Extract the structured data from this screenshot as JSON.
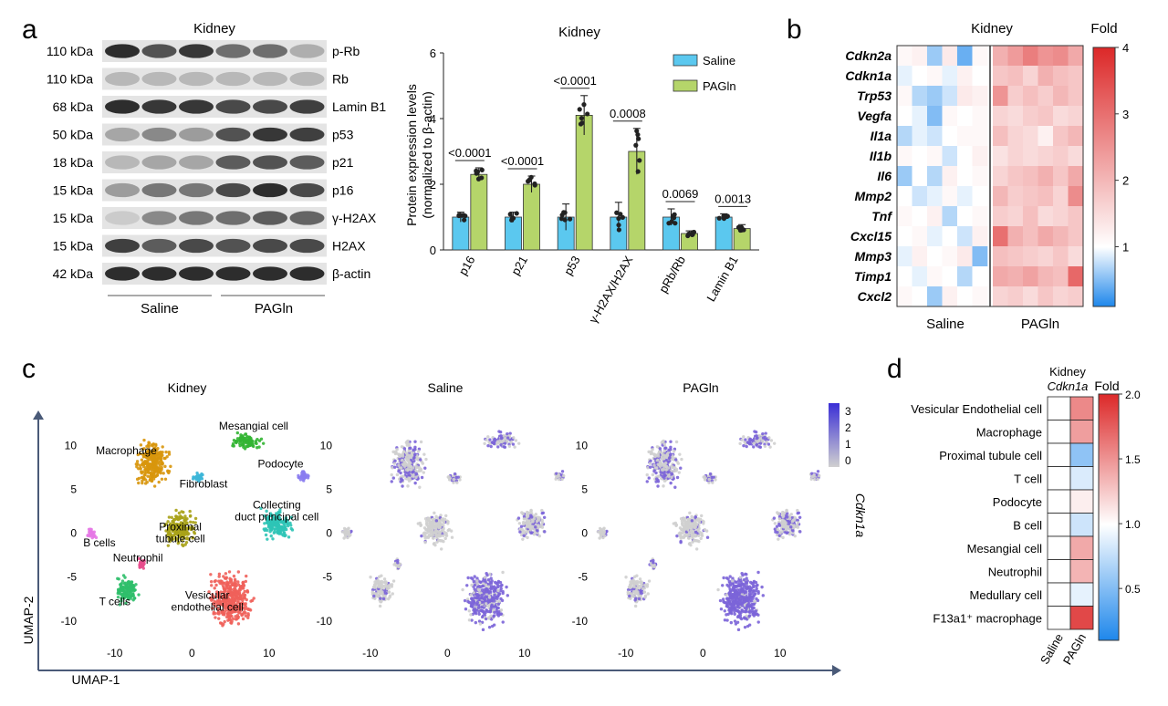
{
  "panels": {
    "a": "a",
    "b": "b",
    "c": "c",
    "d": "d"
  },
  "colors": {
    "saline": "#5bc8ef",
    "pagln": "#b5d56a",
    "macrophage": "#d8960c",
    "mesangial": "#33b533",
    "fibroblast": "#3cb6d8",
    "podocyte": "#8a7cf0",
    "collecting": "#2ec4b6",
    "b_cells": "#e678e6",
    "neutrophil": "#e74c8c",
    "proximal": "#a8a218",
    "t_cells": "#2fbf6a",
    "vesicular": "#f0605a",
    "expr_high": "#3b2fd6",
    "expr_low": "#d0d0d0"
  },
  "western": {
    "title": "Kidney",
    "rows": [
      {
        "mw": "110 kDa",
        "protein": "p-Rb",
        "bands": [
          0.95,
          0.75,
          0.9,
          0.6,
          0.6,
          0.25
        ]
      },
      {
        "mw": "110 kDa",
        "protein": "Rb",
        "bands": [
          0.2,
          0.2,
          0.2,
          0.2,
          0.2,
          0.2
        ]
      },
      {
        "mw": "68 kDa",
        "protein": "Lamin B1",
        "bands": [
          0.95,
          0.9,
          0.9,
          0.8,
          0.8,
          0.85
        ]
      },
      {
        "mw": "50 kDa",
        "protein": "p53",
        "bands": [
          0.3,
          0.45,
          0.35,
          0.75,
          0.9,
          0.85
        ]
      },
      {
        "mw": "18 kDa",
        "protein": "p21",
        "bands": [
          0.2,
          0.3,
          0.3,
          0.7,
          0.75,
          0.7
        ]
      },
      {
        "mw": "15 kDa",
        "protein": "p16",
        "bands": [
          0.35,
          0.55,
          0.55,
          0.8,
          0.95,
          0.8
        ]
      },
      {
        "mw": "15 kDa",
        "protein": "γ-H2AX",
        "bands": [
          0.1,
          0.45,
          0.55,
          0.6,
          0.7,
          0.65
        ]
      },
      {
        "mw": "15 kDa",
        "protein": "H2AX",
        "bands": [
          0.85,
          0.7,
          0.8,
          0.75,
          0.8,
          0.8
        ]
      },
      {
        "mw": "42 kDa",
        "protein": "β-actin",
        "bands": [
          0.95,
          0.95,
          0.95,
          0.95,
          0.95,
          0.95
        ]
      }
    ],
    "group_labels": [
      "Saline",
      "PAGln"
    ]
  },
  "chart_data": [
    {
      "type": "bar",
      "title": "Kidney",
      "ylabel": "Protein expression levels",
      "ylabel2": "(normalized to β-actin)",
      "ylim": [
        0,
        6
      ],
      "yticks": [
        "0",
        "2",
        "4",
        "6"
      ],
      "categories": [
        "p16",
        "p21",
        "p53",
        "γ-H2AX/H2AX",
        "pRb/Rb",
        "Lamin B1"
      ],
      "series": [
        {
          "name": "Saline",
          "values": [
            1.0,
            1.0,
            1.0,
            1.0,
            1.0,
            1.0
          ]
        },
        {
          "name": "PAGln",
          "values": [
            2.3,
            2.0,
            4.1,
            3.0,
            0.5,
            0.65
          ]
        }
      ],
      "errors": {
        "Saline": [
          0.15,
          0.15,
          0.4,
          0.45,
          0.25,
          0.1
        ],
        "PAGln": [
          0.2,
          0.25,
          0.6,
          0.7,
          0.08,
          0.12
        ]
      },
      "pvalues": [
        "<0.0001",
        "<0.0001",
        "<0.0001",
        "0.0008",
        "0.0069",
        "0.0013"
      ]
    },
    {
      "type": "heatmap",
      "title": "Kidney",
      "rows": [
        "Cdkn2a",
        "Cdkn1a",
        "Trp53",
        "Vegfa",
        "Il1a",
        "Il1b",
        "Il6",
        "Mmp2",
        "Tnf",
        "Cxcl15",
        "Mmp3",
        "Timp1",
        "Cxcl2"
      ],
      "groups": [
        "Saline",
        "PAGln"
      ],
      "colorbar_label": "Fold",
      "colorbar_ticks": [
        "4",
        "3",
        "2",
        "1"
      ],
      "range": [
        0.1,
        4
      ],
      "values": [
        [
          1.1,
          1.2,
          0.6,
          1.3,
          0.4,
          1.1,
          2.1,
          2.4,
          2.8,
          2.5,
          2.6,
          2.2
        ],
        [
          0.9,
          1.0,
          1.1,
          0.9,
          1.2,
          1.0,
          1.8,
          1.9,
          1.6,
          2.1,
          1.9,
          1.8
        ],
        [
          1.1,
          0.7,
          0.6,
          0.8,
          1.3,
          1.2,
          2.5,
          1.7,
          1.9,
          1.7,
          2.0,
          1.8
        ],
        [
          1.0,
          0.9,
          0.5,
          1.1,
          1.0,
          1.1,
          1.6,
          1.5,
          1.7,
          1.8,
          1.5,
          1.6
        ],
        [
          0.7,
          0.9,
          0.8,
          1.0,
          1.1,
          1.1,
          1.9,
          1.6,
          1.5,
          1.2,
          1.8,
          2.0
        ],
        [
          1.1,
          1.0,
          1.1,
          0.8,
          1.0,
          1.2,
          1.4,
          1.6,
          1.5,
          1.6,
          1.7,
          1.5
        ],
        [
          0.6,
          1.0,
          0.7,
          1.2,
          1.0,
          1.1,
          1.6,
          1.8,
          1.9,
          2.1,
          1.8,
          2.2
        ],
        [
          1.0,
          0.8,
          0.9,
          1.1,
          0.9,
          1.0,
          2.0,
          1.7,
          1.8,
          1.9,
          1.6,
          2.6
        ],
        [
          1.1,
          1.0,
          1.2,
          0.7,
          1.0,
          1.1,
          1.7,
          1.6,
          1.9,
          1.5,
          1.6,
          1.8
        ],
        [
          1.0,
          1.1,
          0.9,
          1.0,
          0.8,
          1.2,
          3.0,
          2.1,
          1.9,
          2.2,
          2.0,
          1.8
        ],
        [
          0.9,
          1.2,
          1.0,
          1.1,
          1.3,
          0.5,
          1.9,
          1.8,
          1.7,
          1.6,
          1.8,
          1.5
        ],
        [
          1.0,
          0.9,
          1.1,
          1.0,
          0.7,
          1.0,
          2.2,
          2.1,
          2.3,
          2.0,
          1.9,
          3.1
        ],
        [
          1.1,
          1.0,
          0.6,
          1.2,
          1.0,
          1.1,
          1.6,
          1.7,
          1.5,
          1.8,
          1.6,
          1.7
        ]
      ]
    },
    {
      "type": "scatter",
      "title": "Kidney",
      "subtitles": [
        "Saline",
        "PAGln"
      ],
      "xlabel": "UMAP-1",
      "ylabel": "UMAP-2",
      "xticks": [
        "-10",
        "0",
        "10"
      ],
      "yticks": [
        "10",
        "5",
        "0",
        "-5",
        "-10"
      ],
      "xlim": [
        -14,
        17
      ],
      "ylim": [
        -12,
        14
      ],
      "expr_legend": [
        "3",
        "2",
        "1",
        "0"
      ],
      "gene_label": "Cdkn1a",
      "clusters": [
        {
          "name": "Macrophage",
          "x": -5,
          "y": 8,
          "w": 5.5,
          "h": 6.5,
          "color_key": "macrophage",
          "expr": 0.35
        },
        {
          "name": "Mesangial cell",
          "x": 7,
          "y": 10.5,
          "w": 5,
          "h": 2.5,
          "color_key": "mesangial",
          "expr": 0.5
        },
        {
          "name": "Fibroblast",
          "x": 0.8,
          "y": 6.3,
          "w": 2,
          "h": 1.3,
          "color_key": "fibroblast",
          "expr": 0.2
        },
        {
          "name": "Podocyte",
          "x": 14.5,
          "y": 6.5,
          "w": 1.8,
          "h": 1.3,
          "color_key": "podocyte",
          "expr": 0.5
        },
        {
          "name": "Collecting duct principal cell",
          "x": 11,
          "y": 1,
          "w": 5,
          "h": 4,
          "color_key": "collecting",
          "expr": 0.3
        },
        {
          "name": "B cells",
          "x": -13,
          "y": 0,
          "w": 1.6,
          "h": 1.5,
          "color_key": "b_cells",
          "expr": 0.1
        },
        {
          "name": "Neutrophil",
          "x": -6.5,
          "y": -3.5,
          "w": 1.2,
          "h": 1.5,
          "color_key": "neutrophil",
          "expr": 0.3
        },
        {
          "name": "Proximal tubule cell",
          "x": -1.5,
          "y": 0.5,
          "w": 5,
          "h": 5,
          "color_key": "proximal",
          "expr": 0.1
        },
        {
          "name": "T cells",
          "x": -8.5,
          "y": -6.5,
          "w": 4,
          "h": 4,
          "color_key": "t_cells",
          "expr": 0.15
        },
        {
          "name": "Vesicular endothelial cell",
          "x": 5,
          "y": -7.5,
          "w": 7,
          "h": 7.5,
          "color_key": "vesicular",
          "expr": 0.75
        }
      ]
    },
    {
      "type": "heatmap",
      "title": "Kidney",
      "gene": "Cdkn1a",
      "rows": [
        "Vesicular Endothelial cell",
        "Macrophage",
        "Proximal tubule cell",
        "T cell",
        "Podocyte",
        "B cell",
        "Mesangial cell",
        "Neutrophil",
        "Medullary cell",
        "F13a1⁺ macrophage"
      ],
      "columns": [
        "Saline",
        "PAGln"
      ],
      "colorbar_label": "Fold",
      "colorbar_ticks": [
        "2.0",
        "1.5",
        "1.0",
        "0.5"
      ],
      "range": [
        0.1,
        2.0
      ],
      "values": [
        [
          1.0,
          1.55
        ],
        [
          1.0,
          1.45
        ],
        [
          1.0,
          0.55
        ],
        [
          1.0,
          0.85
        ],
        [
          1.0,
          1.08
        ],
        [
          1.0,
          0.8
        ],
        [
          1.0,
          1.4
        ],
        [
          1.0,
          1.35
        ],
        [
          1.0,
          0.9
        ],
        [
          1.0,
          1.85
        ]
      ]
    }
  ]
}
